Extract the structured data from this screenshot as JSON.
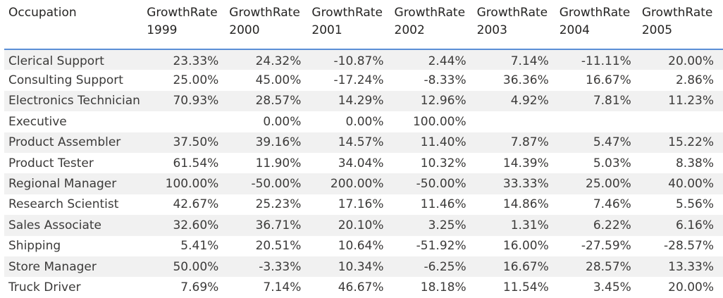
{
  "columns": [
    {
      "label_line1": "Occupation",
      "label_line2": ""
    },
    {
      "label_line1": "GrowthRate",
      "label_line2": "1999"
    },
    {
      "label_line1": "GrowthRate",
      "label_line2": "2000"
    },
    {
      "label_line1": "GrowthRate",
      "label_line2": "2001"
    },
    {
      "label_line1": "GrowthRate",
      "label_line2": "2002"
    },
    {
      "label_line1": "GrowthRate",
      "label_line2": "2003"
    },
    {
      "label_line1": "GrowthRate",
      "label_line2": "2004"
    },
    {
      "label_line1": "GrowthRate",
      "label_line2": "2005"
    }
  ],
  "rows": [
    {
      "occupation": "Clerical Support",
      "values": [
        "23.33%",
        "24.32%",
        "-10.87%",
        "2.44%",
        "7.14%",
        "-11.11%",
        "20.00%"
      ]
    },
    {
      "occupation": "Consulting Support",
      "values": [
        "25.00%",
        "45.00%",
        "-17.24%",
        "-8.33%",
        "36.36%",
        "16.67%",
        "2.86%"
      ]
    },
    {
      "occupation": "Electronics Technician",
      "values": [
        "70.93%",
        "28.57%",
        "14.29%",
        "12.96%",
        "4.92%",
        "7.81%",
        "11.23%"
      ]
    },
    {
      "occupation": "Executive",
      "values": [
        "",
        "0.00%",
        "0.00%",
        "100.00%",
        "",
        "",
        ""
      ]
    },
    {
      "occupation": "Product Assembler",
      "values": [
        "37.50%",
        "39.16%",
        "14.57%",
        "11.40%",
        "7.87%",
        "5.47%",
        "15.22%"
      ]
    },
    {
      "occupation": "Product Tester",
      "values": [
        "61.54%",
        "11.90%",
        "34.04%",
        "10.32%",
        "14.39%",
        "5.03%",
        "8.38%"
      ]
    },
    {
      "occupation": "Regional Manager",
      "values": [
        "100.00%",
        "-50.00%",
        "200.00%",
        "-50.00%",
        "33.33%",
        "25.00%",
        "40.00%"
      ]
    },
    {
      "occupation": "Research Scientist",
      "values": [
        "42.67%",
        "25.23%",
        "17.16%",
        "11.46%",
        "14.86%",
        "7.46%",
        "5.56%"
      ]
    },
    {
      "occupation": "Sales Associate",
      "values": [
        "32.60%",
        "36.71%",
        "20.10%",
        "3.25%",
        "1.31%",
        "6.22%",
        "6.16%"
      ]
    },
    {
      "occupation": "Shipping",
      "values": [
        "5.41%",
        "20.51%",
        "10.64%",
        "-51.92%",
        "16.00%",
        "-27.59%",
        "-28.57%"
      ]
    },
    {
      "occupation": "Store Manager",
      "values": [
        "50.00%",
        "-3.33%",
        "10.34%",
        "-6.25%",
        "16.67%",
        "28.57%",
        "13.33%"
      ]
    },
    {
      "occupation": "Truck Driver",
      "values": [
        "7.69%",
        "7.14%",
        "46.67%",
        "18.18%",
        "11.54%",
        "3.45%",
        "20.00%"
      ]
    }
  ],
  "colors": {
    "header_rule": "#5b8fd6",
    "band": "#f1f1f1"
  }
}
